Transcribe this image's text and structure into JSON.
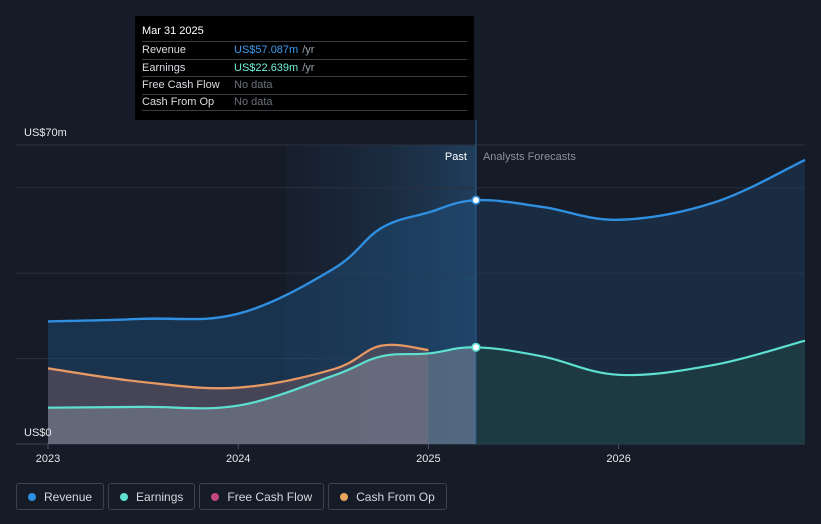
{
  "colors": {
    "background": "#151b27",
    "revenue": "#2f8fe0",
    "earnings": "#5ee0d0",
    "free_cash_flow": "#c2477e",
    "cash_from_op": "#e8a45f"
  },
  "tooltip": {
    "date": "Mar 31 2025",
    "rows": [
      {
        "label": "Revenue",
        "value": "US$57.087m",
        "unit": "/yr",
        "color": "#3c9bf0"
      },
      {
        "label": "Earnings",
        "value": "US$22.639m",
        "unit": "/yr",
        "color": "#6ff2d8"
      },
      {
        "label": "Free Cash Flow",
        "value": "No data",
        "unit": "",
        "color": ""
      },
      {
        "label": "Cash From Op",
        "value": "No data",
        "unit": "",
        "color": ""
      }
    ]
  },
  "legend": [
    {
      "label": "Revenue",
      "color": "#2f8fe0"
    },
    {
      "label": "Earnings",
      "color": "#5ee0d0"
    },
    {
      "label": "Free Cash Flow",
      "color": "#c2477e"
    },
    {
      "label": "Cash From Op",
      "color": "#e8a45f"
    }
  ],
  "chart_data": {
    "type": "area",
    "title": "",
    "y_unit": "US$m",
    "ylim": [
      0,
      70
    ],
    "y_top_label": "US$70m",
    "y_bottom_label": "US$0",
    "xlim": [
      2023.0,
      2026.98
    ],
    "x_ticks": [
      2023,
      2024,
      2025,
      2026
    ],
    "x_tick_labels": [
      "2023",
      "2024",
      "2025",
      "2026"
    ],
    "past_label": "Past",
    "forecast_label": "Analysts Forecasts",
    "highlight_start": 2024.25,
    "divider_x": 2025.25,
    "series": [
      {
        "name": "Revenue",
        "key": "revenue",
        "points": [
          [
            2023.0,
            28.7
          ],
          [
            2023.5,
            29.3
          ],
          [
            2024.0,
            30.5
          ],
          [
            2024.5,
            41.0
          ],
          [
            2024.75,
            50.5
          ],
          [
            2025.0,
            54.2
          ],
          [
            2025.25,
            57.087
          ],
          [
            2025.6,
            55.5
          ],
          [
            2026.0,
            52.5
          ],
          [
            2026.5,
            56.5
          ],
          [
            2026.98,
            66.5
          ]
        ]
      },
      {
        "name": "Earnings",
        "key": "earnings",
        "points": [
          [
            2023.0,
            8.5
          ],
          [
            2023.5,
            8.7
          ],
          [
            2024.0,
            9.0
          ],
          [
            2024.5,
            16.0
          ],
          [
            2024.75,
            20.5
          ],
          [
            2025.0,
            21.2
          ],
          [
            2025.25,
            22.639
          ],
          [
            2025.6,
            20.5
          ],
          [
            2026.0,
            16.2
          ],
          [
            2026.5,
            18.5
          ],
          [
            2026.98,
            24.2
          ]
        ]
      },
      {
        "name": "Free Cash Flow",
        "key": "free_cash_flow",
        "points": [
          [
            2023.0,
            17.7
          ],
          [
            2023.5,
            14.5
          ],
          [
            2024.0,
            13.2
          ],
          [
            2024.5,
            17.5
          ],
          [
            2024.75,
            23.0
          ],
          [
            2025.0,
            22.0
          ]
        ]
      },
      {
        "name": "Cash From Op",
        "key": "cash_from_op",
        "points": [
          [
            2023.0,
            17.7
          ],
          [
            2023.5,
            14.5
          ],
          [
            2024.0,
            13.2
          ],
          [
            2024.5,
            17.5
          ],
          [
            2024.75,
            23.0
          ],
          [
            2025.0,
            22.0
          ]
        ]
      }
    ]
  }
}
